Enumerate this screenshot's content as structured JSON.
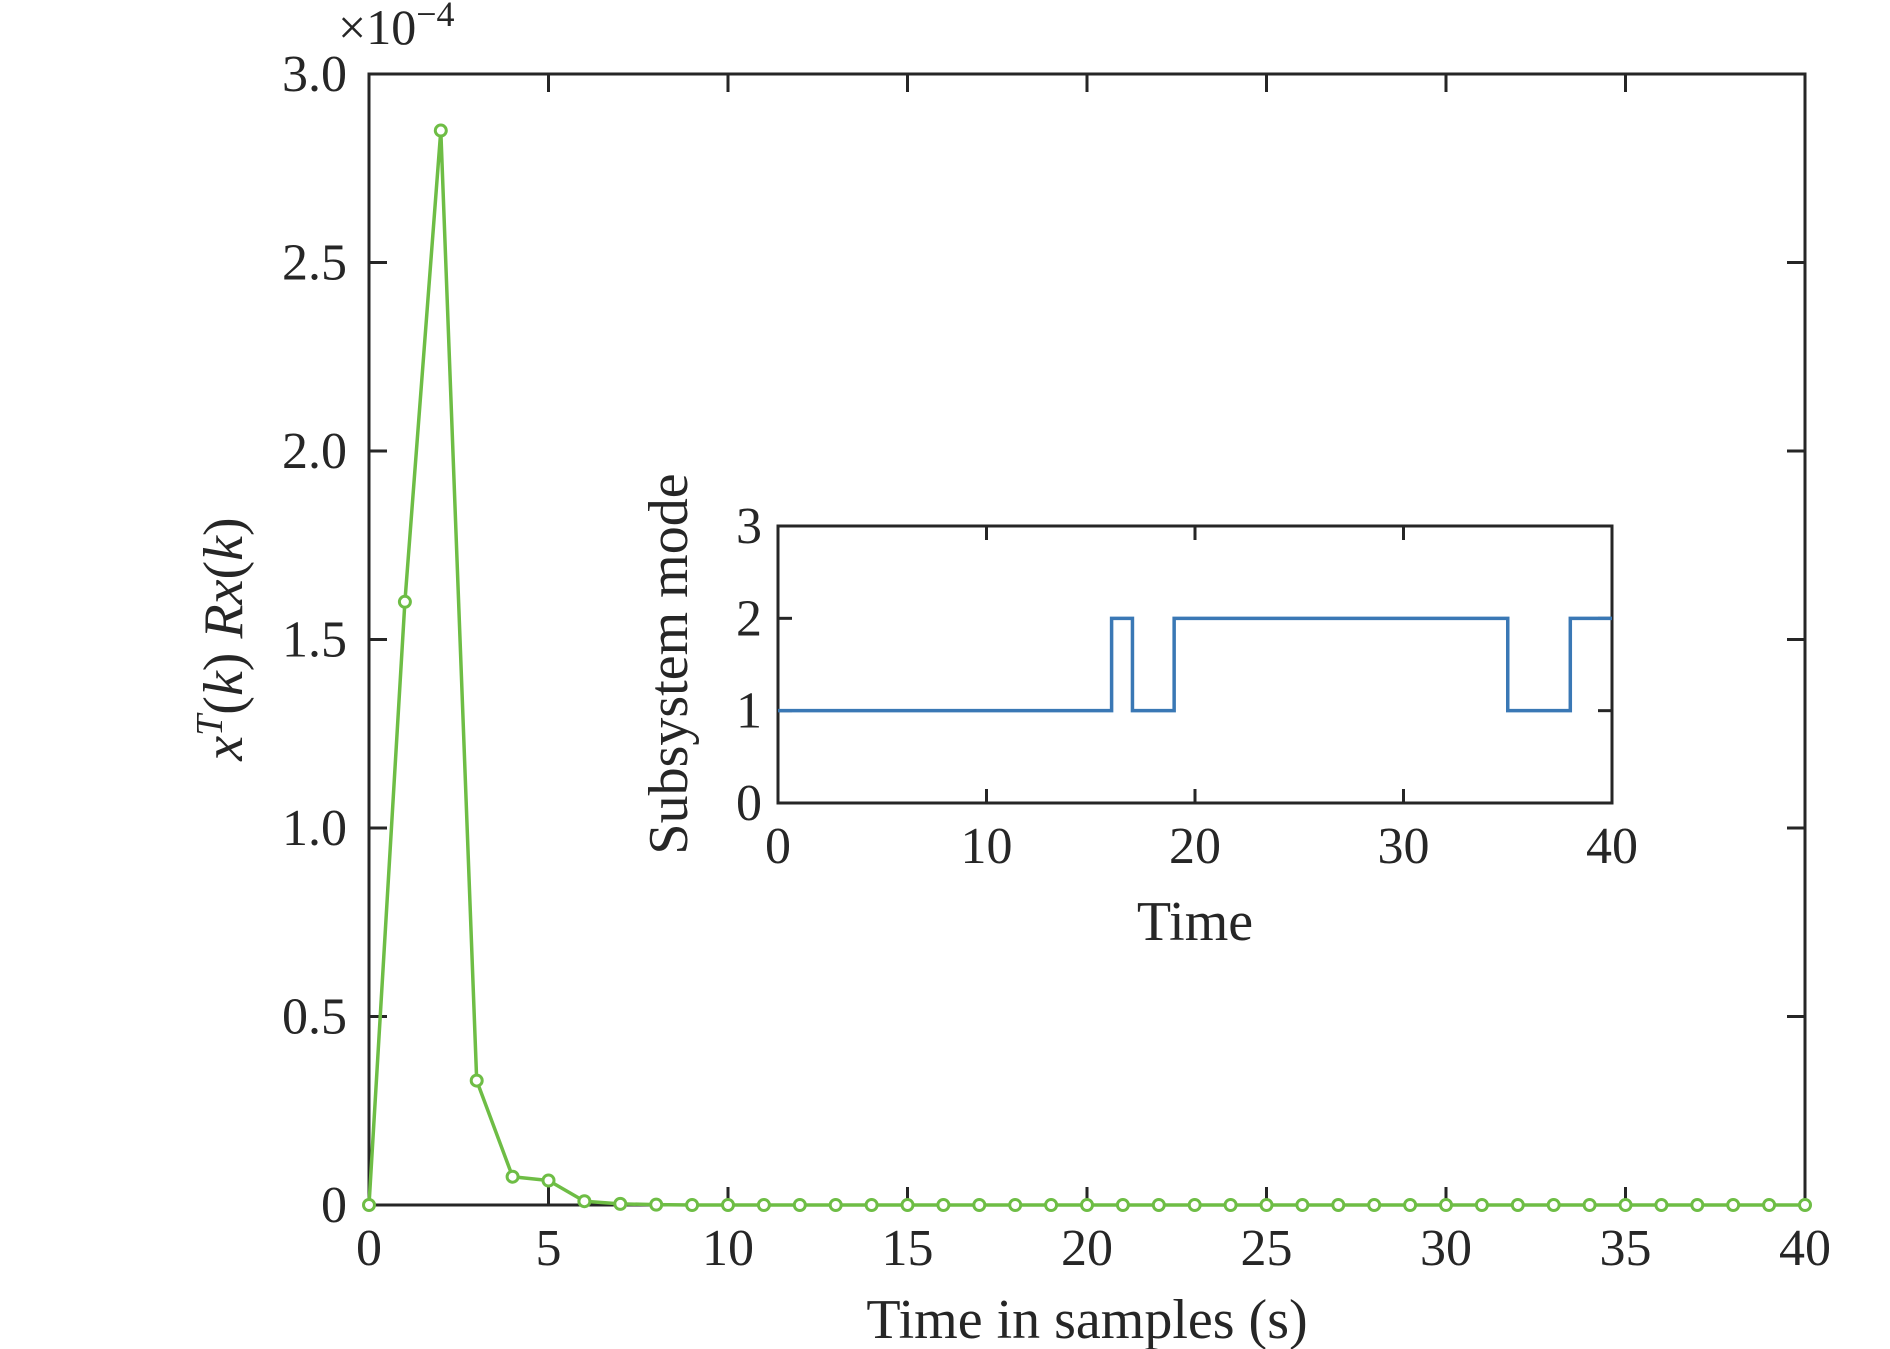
{
  "chart_data": [
    {
      "type": "line",
      "xlabel": "Time in samples (s)",
      "ylabel_parts": [
        "x",
        "T",
        "(",
        "k",
        ") ",
        "Rx",
        "(",
        "k",
        ")"
      ],
      "exponent_label": "×10",
      "exponent_power": "−4",
      "xlim": [
        0,
        40
      ],
      "ylim": [
        0,
        3.0
      ],
      "xticks": [
        0,
        5,
        10,
        15,
        20,
        25,
        30,
        35,
        40
      ],
      "yticks": [
        0,
        0.5,
        1.0,
        1.5,
        2.0,
        2.5,
        3.0
      ],
      "ytick_labels": [
        "0",
        "0.5",
        "1.0",
        "1.5",
        "2.0",
        "2.5",
        "3.0"
      ],
      "grid": false,
      "series": [
        {
          "color": "#6ebd45",
          "marker": "circle",
          "x": [
            0,
            1,
            2,
            3,
            4,
            5,
            6,
            7,
            8,
            9,
            10,
            11,
            12,
            13,
            14,
            15,
            16,
            17,
            18,
            19,
            20,
            21,
            22,
            23,
            24,
            25,
            26,
            27,
            28,
            29,
            30,
            31,
            32,
            33,
            34,
            35,
            36,
            37,
            38,
            39,
            40
          ],
          "y": [
            0,
            1.6,
            2.85,
            0.33,
            0.075,
            0.065,
            0.01,
            0.003,
            0.001,
            0,
            0,
            0,
            0,
            0,
            0,
            0,
            0,
            0,
            0,
            0,
            0,
            0,
            0,
            0,
            0,
            0,
            0,
            0,
            0,
            0,
            0,
            0,
            0,
            0,
            0,
            0,
            0,
            0,
            0,
            0,
            0
          ]
        }
      ]
    },
    {
      "type": "line",
      "inset": true,
      "xlabel": "Time",
      "ylabel": "Subsystem mode",
      "xlim": [
        0,
        40
      ],
      "ylim": [
        0,
        3
      ],
      "xticks": [
        0,
        10,
        20,
        30,
        40
      ],
      "yticks": [
        0,
        1,
        2,
        3
      ],
      "grid": false,
      "series": [
        {
          "color": "#3a78b5",
          "step": true,
          "x": [
            0,
            16,
            16,
            17,
            17,
            19,
            19,
            35,
            35,
            38,
            38,
            40
          ],
          "y": [
            1,
            1,
            2,
            2,
            1,
            1,
            2,
            2,
            1,
            1,
            2,
            2
          ]
        }
      ]
    }
  ]
}
